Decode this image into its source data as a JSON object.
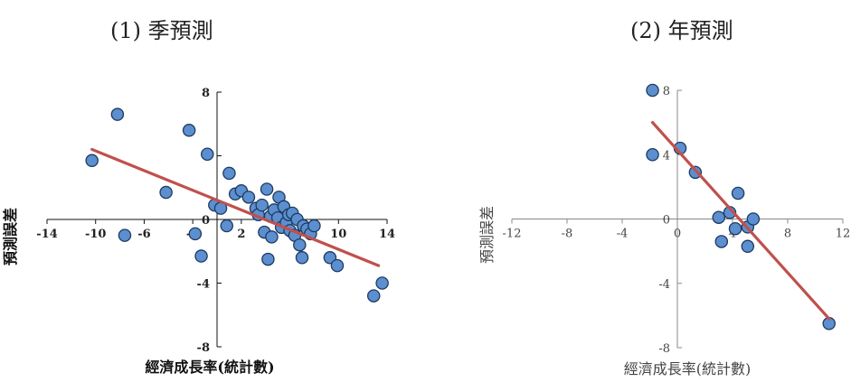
{
  "panels": [
    {
      "title": "(1) 季預測"
    },
    {
      "title": "(2) 年預測"
    }
  ],
  "chart_data": [
    {
      "type": "scatter",
      "title": "(1) 季預測",
      "xlabel": "經濟成長率(統計數)",
      "ylabel": "預測誤差",
      "xlim": [
        -14,
        14
      ],
      "ylim": [
        -8,
        8
      ],
      "x_ticks": [
        -14,
        -10,
        -6,
        -2,
        2,
        6,
        10,
        14
      ],
      "x_tick_labels": [
        "-14",
        "-10",
        "-6",
        "-2",
        "2",
        "6",
        "10",
        "14"
      ],
      "y_ticks": [
        -8,
        -4,
        0,
        4,
        8
      ],
      "y_tick_labels": [
        "-8",
        "-4",
        "0",
        "4",
        "8"
      ],
      "marker_color": "#5b8fd0",
      "trendline_color": "#c0504d",
      "trendline": {
        "x": [
          -10.3,
          13.3
        ],
        "y": [
          4.4,
          -2.9
        ]
      },
      "points": [
        {
          "x": -10.3,
          "y": 3.7
        },
        {
          "x": -8.2,
          "y": 6.6
        },
        {
          "x": -7.6,
          "y": -1.0
        },
        {
          "x": -4.2,
          "y": 1.7
        },
        {
          "x": -2.3,
          "y": 5.6
        },
        {
          "x": -1.8,
          "y": -0.9
        },
        {
          "x": -1.3,
          "y": -2.3
        },
        {
          "x": -0.8,
          "y": 4.1
        },
        {
          "x": -0.2,
          "y": 0.9
        },
        {
          "x": 0.3,
          "y": 0.7
        },
        {
          "x": 0.8,
          "y": -0.4
        },
        {
          "x": 1.0,
          "y": 2.9
        },
        {
          "x": 1.5,
          "y": 1.6
        },
        {
          "x": 2.0,
          "y": 1.8
        },
        {
          "x": 2.6,
          "y": 1.4
        },
        {
          "x": 3.2,
          "y": 0.7
        },
        {
          "x": 3.4,
          "y": 0.3
        },
        {
          "x": 3.7,
          "y": 0.9
        },
        {
          "x": 3.9,
          "y": -0.8
        },
        {
          "x": 4.1,
          "y": 1.9
        },
        {
          "x": 4.2,
          "y": -2.5
        },
        {
          "x": 4.4,
          "y": 0.2
        },
        {
          "x": 4.5,
          "y": -1.1
        },
        {
          "x": 4.7,
          "y": 0.6
        },
        {
          "x": 5.0,
          "y": 0.1
        },
        {
          "x": 5.1,
          "y": 1.4
        },
        {
          "x": 5.3,
          "y": -0.5
        },
        {
          "x": 5.5,
          "y": 0.8
        },
        {
          "x": 5.7,
          "y": -0.2
        },
        {
          "x": 5.9,
          "y": 0.3
        },
        {
          "x": 6.0,
          "y": -0.7
        },
        {
          "x": 6.2,
          "y": 0.4
        },
        {
          "x": 6.4,
          "y": -1.0
        },
        {
          "x": 6.6,
          "y": 0.0
        },
        {
          "x": 6.8,
          "y": -1.6
        },
        {
          "x": 7.0,
          "y": -2.4
        },
        {
          "x": 7.1,
          "y": -0.4
        },
        {
          "x": 7.4,
          "y": -0.6
        },
        {
          "x": 7.7,
          "y": -0.9
        },
        {
          "x": 8.0,
          "y": -0.4
        },
        {
          "x": 9.3,
          "y": -2.4
        },
        {
          "x": 9.9,
          "y": -2.9
        },
        {
          "x": 12.9,
          "y": -4.8
        },
        {
          "x": 13.6,
          "y": -4.0
        }
      ]
    },
    {
      "type": "scatter",
      "title": "(2) 年預測",
      "xlabel": "經濟成長率(統計數)",
      "ylabel": "預測誤差",
      "xlim": [
        -12,
        12
      ],
      "ylim": [
        -8,
        8
      ],
      "x_ticks": [
        -12,
        -8,
        -4,
        0,
        4,
        8,
        12
      ],
      "x_tick_labels": [
        "-12",
        "-8",
        "-4",
        "0",
        "4",
        "8",
        "12"
      ],
      "y_ticks": [
        -8,
        -4,
        0,
        4,
        8
      ],
      "y_tick_labels": [
        "-8",
        "-4",
        "0",
        "4",
        "8"
      ],
      "marker_color": "#5b8fd0",
      "trendline_color": "#c0504d",
      "trendline": {
        "x": [
          -1.8,
          11.0
        ],
        "y": [
          6.0,
          -6.2
        ]
      },
      "points": [
        {
          "x": -1.8,
          "y": 8.0
        },
        {
          "x": -1.8,
          "y": 4.0
        },
        {
          "x": 0.2,
          "y": 4.4
        },
        {
          "x": 1.3,
          "y": 2.9
        },
        {
          "x": 3.0,
          "y": 0.1
        },
        {
          "x": 3.2,
          "y": -1.4
        },
        {
          "x": 3.8,
          "y": 0.4
        },
        {
          "x": 4.2,
          "y": -0.6
        },
        {
          "x": 4.4,
          "y": 1.6
        },
        {
          "x": 5.1,
          "y": -1.7
        },
        {
          "x": 5.1,
          "y": -0.5
        },
        {
          "x": 5.5,
          "y": 0.0
        },
        {
          "x": 11.0,
          "y": -6.5
        }
      ]
    }
  ]
}
